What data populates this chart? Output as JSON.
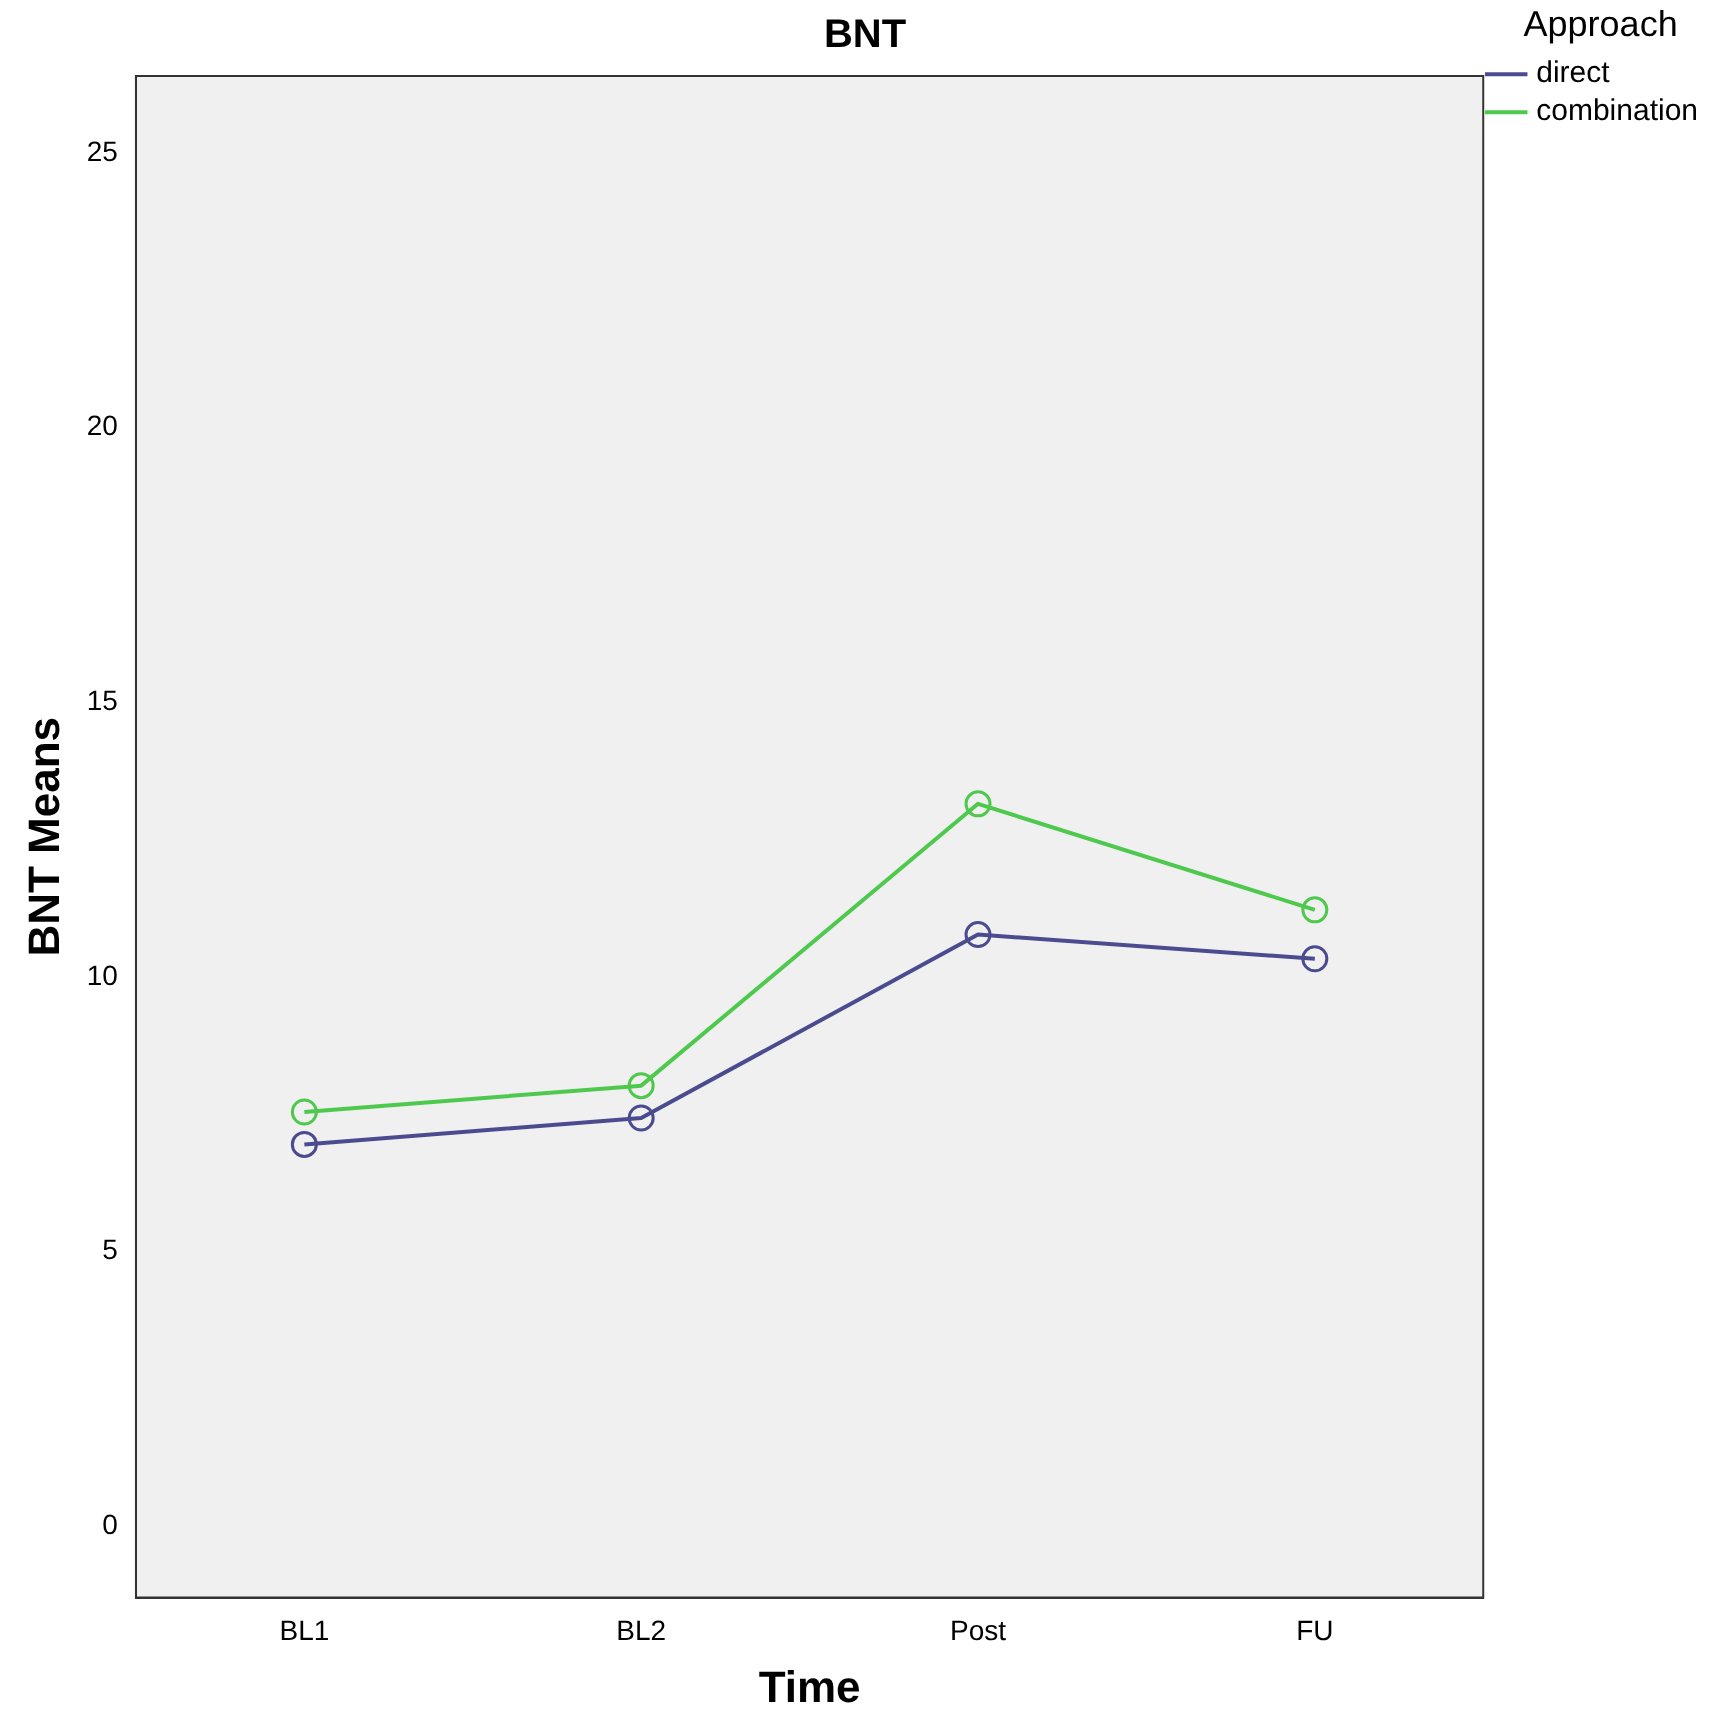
{
  "chart_data": {
    "type": "line",
    "title": "BNT",
    "xlabel": "Time",
    "ylabel": "BNT Means",
    "legend_title": "Approach",
    "categories": [
      "BL1",
      "BL2",
      "Post",
      "FU"
    ],
    "series": [
      {
        "name": "direct",
        "color": "#4b4b8f",
        "values": [
          6.95,
          7.43,
          10.77,
          10.33
        ]
      },
      {
        "name": "combination",
        "color": "#4ec94e",
        "values": [
          7.54,
          8.02,
          13.15,
          11.22
        ]
      }
    ],
    "ylim": [
      -1.3,
      26.4
    ],
    "yticks": [
      0,
      5,
      10,
      15,
      20,
      25
    ],
    "grid": false,
    "legend": "top right",
    "marker": "circle",
    "line_style": "solid"
  }
}
